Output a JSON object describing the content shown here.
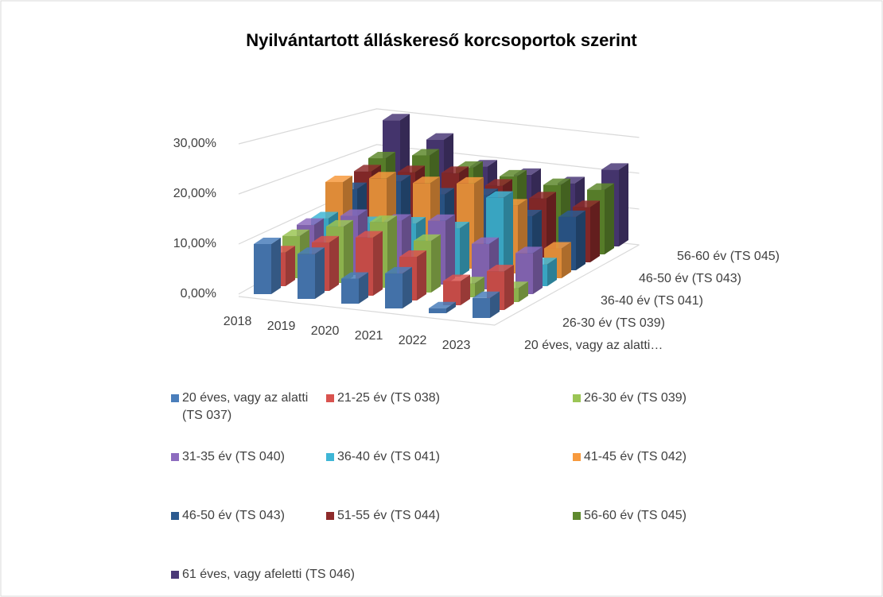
{
  "chart_data": {
    "type": "bar3d",
    "title": "Nyilvántartott álláskereső korcsoportok szerint",
    "categories": [
      "2018",
      "2019",
      "2020",
      "2021",
      "2022",
      "2023"
    ],
    "depth_labels": [
      "20 éves, vagy az alatti…",
      "26-30 év (TS 039)",
      "36-40 év (TS 041)",
      "46-50 év (TS 043)",
      "56-60 év (TS 045)"
    ],
    "ylim": [
      0,
      35
    ],
    "yticks": [
      {
        "value": 0,
        "label": "0,00%"
      },
      {
        "value": 10,
        "label": "10,00%"
      },
      {
        "value": 20,
        "label": "20,00%"
      },
      {
        "value": 30,
        "label": "30,00%"
      }
    ],
    "grid": true,
    "series": [
      {
        "name": "20 éves, vagy az alatti (TS 037)",
        "color": "#4a7ebb",
        "values": [
          10,
          9,
          5,
          7,
          1,
          4
        ]
      },
      {
        "name": "21-25 év (TS 038)",
        "color": "#d9534f",
        "values": [
          7,
          10,
          12,
          9,
          5,
          8
        ]
      },
      {
        "name": "26-30 év (TS 039)",
        "color": "#9bc555",
        "values": [
          9,
          12,
          14,
          11,
          3,
          3
        ]
      },
      {
        "name": "31-35 év (TS 040)",
        "color": "#8d6cbf",
        "values": [
          10,
          13,
          13,
          14,
          10,
          9
        ]
      },
      {
        "name": "36-40 év (TS 041)",
        "color": "#3fb6d6",
        "values": [
          10,
          10,
          11,
          11,
          19,
          5
        ]
      },
      {
        "name": "41-45 év (TS 042)",
        "color": "#f79a3e",
        "values": [
          17,
          19,
          19,
          20,
          16,
          7
        ]
      },
      {
        "name": "46-50 év (TS 043)",
        "color": "#2c5a8f",
        "values": [
          14,
          17,
          15,
          16,
          12,
          13
        ]
      },
      {
        "name": "51-55 év (TS 044)",
        "color": "#8e2b2b",
        "values": [
          17,
          18,
          19,
          17,
          15,
          14
        ]
      },
      {
        "name": "56-60 év (TS 045)",
        "color": "#5f8a2e",
        "values": [
          19,
          21,
          19,
          18,
          17,
          17
        ]
      },
      {
        "name": "61 éves, vagy afeletti (TS 046)",
        "color": "#4b3a78",
        "values": [
          28,
          24,
          18,
          17,
          16,
          21
        ]
      }
    ]
  }
}
